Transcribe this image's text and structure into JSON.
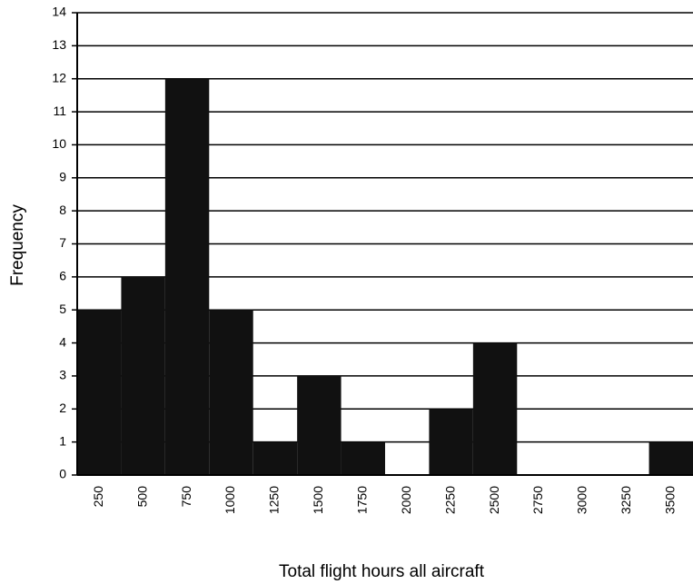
{
  "chart_data": {
    "type": "bar",
    "x_label": "Total flight hours all aircraft",
    "y_label": "Frequency",
    "categories": [
      "250",
      "500",
      "750",
      "1000",
      "1250",
      "1500",
      "1750",
      "2000",
      "2250",
      "2500",
      "2750",
      "3000",
      "3250",
      "3500"
    ],
    "values": [
      5,
      6,
      12,
      5,
      1,
      3,
      1,
      0,
      2,
      4,
      0,
      0,
      0,
      1
    ],
    "color": "#111111",
    "ylim": [
      0,
      14
    ],
    "yticks": [
      0,
      1,
      2,
      3,
      4,
      5,
      6,
      7,
      8,
      9,
      10,
      11,
      12,
      13,
      14
    ],
    "grid": true
  }
}
